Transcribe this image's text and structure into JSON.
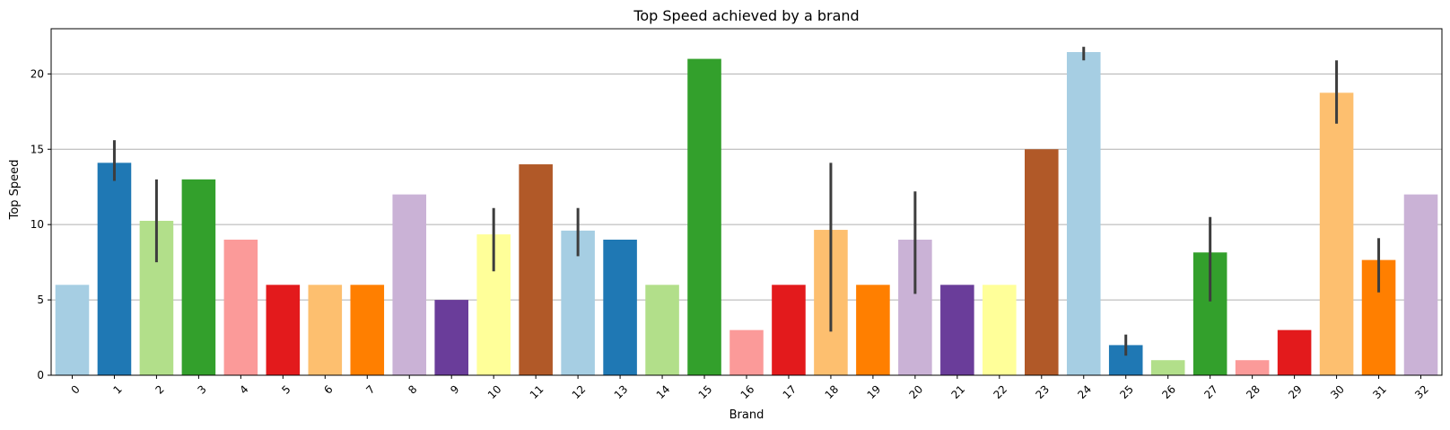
{
  "chart_data": {
    "type": "bar",
    "title": "Top Speed achieved by a brand",
    "xlabel": "Brand",
    "ylabel": "Top Speed",
    "ylim": [
      0,
      23
    ],
    "yticks": [
      0,
      5,
      10,
      15,
      20
    ],
    "grid": "horizontal",
    "categories": [
      "0",
      "1",
      "2",
      "3",
      "4",
      "5",
      "6",
      "7",
      "8",
      "9",
      "10",
      "11",
      "12",
      "13",
      "14",
      "15",
      "16",
      "17",
      "18",
      "19",
      "20",
      "21",
      "22",
      "23",
      "24",
      "25",
      "26",
      "27",
      "28",
      "29",
      "30",
      "31",
      "32"
    ],
    "values": [
      6,
      14.1,
      10.25,
      13,
      9,
      6,
      6,
      6,
      12,
      5,
      9.35,
      14,
      9.6,
      9,
      6,
      21,
      3,
      6,
      9.65,
      6,
      9,
      6,
      6,
      15,
      21.45,
      2,
      1,
      8.15,
      1,
      3,
      18.75,
      7.65,
      12
    ],
    "error_bars": [
      null,
      [
        12.9,
        15.6
      ],
      [
        7.5,
        13
      ],
      null,
      null,
      null,
      null,
      null,
      null,
      null,
      [
        6.9,
        11.1
      ],
      null,
      [
        7.9,
        11.1
      ],
      null,
      null,
      null,
      null,
      null,
      [
        2.9,
        14.1
      ],
      null,
      [
        5.4,
        12.2
      ],
      null,
      null,
      null,
      [
        20.9,
        21.8
      ],
      [
        1.3,
        2.7
      ],
      null,
      [
        4.9,
        10.5
      ],
      null,
      null,
      [
        16.7,
        20.9
      ],
      [
        5.5,
        9.1
      ],
      null
    ],
    "colors": [
      "#a6cee3",
      "#1f78b4",
      "#b2df8a",
      "#33a02c",
      "#fb9a99",
      "#e31a1c",
      "#fdbf6f",
      "#ff7f00",
      "#cab2d6",
      "#6a3d9a",
      "#ffff99",
      "#b15928",
      "#a6cee3",
      "#1f78b4",
      "#b2df8a",
      "#33a02c",
      "#fb9a99",
      "#e31a1c",
      "#fdbf6f",
      "#ff7f00",
      "#cab2d6",
      "#6a3d9a",
      "#ffff99",
      "#b15928",
      "#a6cee3",
      "#1f78b4",
      "#b2df8a",
      "#33a02c",
      "#fb9a99",
      "#e31a1c",
      "#fdbf6f",
      "#ff7f00",
      "#cab2d6"
    ]
  }
}
